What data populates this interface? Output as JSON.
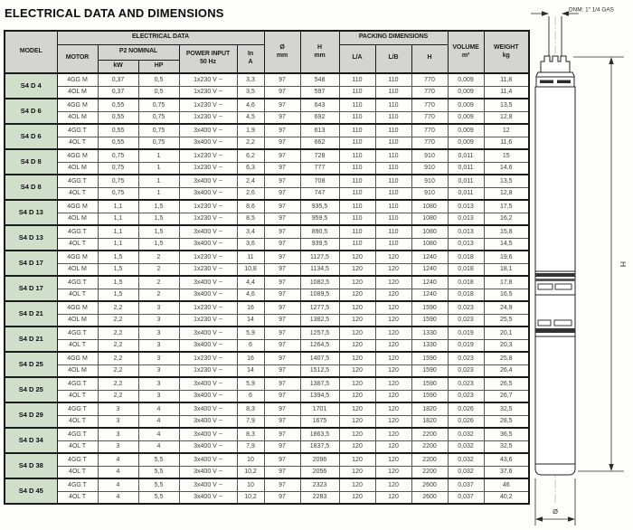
{
  "title": "ELECTRICAL DATA AND DIMENSIONS",
  "colors": {
    "header_bg": "#d4d4d2",
    "model_cell_bg": "#cfdfc9",
    "border": "#1a1a1a"
  },
  "table": {
    "headers": {
      "model": "MODEL",
      "electrical_data": "ELECTRICAL DATA",
      "motor": "MOTOR",
      "p2_nominal": "P2 NOMINAL",
      "kw": "kW",
      "hp": "HP",
      "power_input": "POWER INPUT\n50 Hz",
      "in_a": "In\nA",
      "diameter": "Ø\nmm",
      "h_mm": "H\nmm",
      "packing_dimensions": "PACKING DIMENSIONS",
      "l_a": "L/A",
      "l_b": "L/B",
      "h_pack": "H",
      "volume": "VOLUME\nm³",
      "weight": "WEIGHT\nkg"
    },
    "column_keys": [
      "motor",
      "kw",
      "hp",
      "power-input",
      "in-a",
      "diameter",
      "h-mm",
      "l-a",
      "l-b",
      "h-pack",
      "volume",
      "weight"
    ],
    "groups": [
      {
        "model": "S4 D 4",
        "rows": [
          [
            "4GG M",
            "0,37",
            "0,5",
            "1x230 V ~",
            "3,3",
            "97",
            "548",
            "110",
            "110",
            "770",
            "0,009",
            "11,8"
          ],
          [
            "4OL M",
            "0,37",
            "0,5",
            "1x230 V ~",
            "3,5",
            "97",
            "597",
            "110",
            "110",
            "770",
            "0,009",
            "11,4"
          ]
        ]
      },
      {
        "model": "S4 D 6",
        "rows": [
          [
            "4GG M",
            "0,55",
            "0,75",
            "1x230 V ~",
            "4,6",
            "97",
            "643",
            "110",
            "110",
            "770",
            "0,009",
            "13,5"
          ],
          [
            "4OL M",
            "0,55",
            "0,75",
            "1x230 V ~",
            "4,5",
            "97",
            "692",
            "110",
            "110",
            "770",
            "0,009",
            "12,8"
          ]
        ]
      },
      {
        "model": "S4 D 6",
        "rows": [
          [
            "4GG T",
            "0,55",
            "0,75",
            "3x400 V ~",
            "1,9",
            "97",
            "613",
            "110",
            "110",
            "770",
            "0,009",
            "12"
          ],
          [
            "4OL T",
            "0,55",
            "0,75",
            "3x400 V ~",
            "2,2",
            "97",
            "662",
            "110",
            "110",
            "770",
            "0,009",
            "11,6"
          ]
        ]
      },
      {
        "model": "S4 D 8",
        "rows": [
          [
            "4GG M",
            "0,75",
            "1",
            "1x230 V ~",
            "6,2",
            "97",
            "728",
            "110",
            "110",
            "910",
            "0,011",
            "15"
          ],
          [
            "4OL M",
            "0,75",
            "1",
            "1x230 V ~",
            "6,3",
            "97",
            "777",
            "110",
            "110",
            "910",
            "0,011",
            "14,6"
          ]
        ]
      },
      {
        "model": "S4 D 8",
        "rows": [
          [
            "4GG T",
            "0,75",
            "1",
            "3x400 V ~",
            "2,4",
            "97",
            "708",
            "110",
            "110",
            "910",
            "0,011",
            "13,5"
          ],
          [
            "4OL T",
            "0,75",
            "1",
            "3x400 V ~",
            "2,6",
            "97",
            "747",
            "110",
            "110",
            "910",
            "0,011",
            "12,8"
          ]
        ]
      },
      {
        "model": "S4 D 13",
        "rows": [
          [
            "4GG M",
            "1,1",
            "1,5",
            "1x230 V ~",
            "8,6",
            "97",
            "935,5",
            "110",
            "110",
            "1080",
            "0,013",
            "17,5"
          ],
          [
            "4OL M",
            "1,1",
            "1,5",
            "1x230 V ~",
            "8,5",
            "97",
            "959,5",
            "110",
            "110",
            "1080",
            "0,013",
            "16,2"
          ]
        ]
      },
      {
        "model": "S4 D 13",
        "rows": [
          [
            "4GG T",
            "1,1",
            "1,5",
            "3x400 V ~",
            "3,4",
            "97",
            "890,5",
            "110",
            "110",
            "1080",
            "0,013",
            "15,8"
          ],
          [
            "4OL T",
            "1,1",
            "1,5",
            "3x400 V ~",
            "3,6",
            "97",
            "939,5",
            "110",
            "110",
            "1080",
            "0,013",
            "14,5"
          ]
        ]
      },
      {
        "model": "S4 D 17",
        "rows": [
          [
            "4GG M",
            "1,5",
            "2",
            "1x230 V ~",
            "11",
            "97",
            "1127,5",
            "120",
            "120",
            "1240",
            "0,018",
            "19,6"
          ],
          [
            "4OL M",
            "1,5",
            "2",
            "1x230 V ~",
            "10,8",
            "97",
            "1134,5",
            "120",
            "120",
            "1240",
            "0,018",
            "18,1"
          ]
        ]
      },
      {
        "model": "S4 D 17",
        "rows": [
          [
            "4GG T",
            "1,5",
            "2",
            "3x400 V ~",
            "4,4",
            "97",
            "1082,5",
            "120",
            "120",
            "1240",
            "0,018",
            "17,8"
          ],
          [
            "4OL T",
            "1,5",
            "2",
            "3x400 V ~",
            "4,6",
            "97",
            "1089,5",
            "120",
            "120",
            "1240",
            "0,018",
            "16,5"
          ]
        ]
      },
      {
        "model": "S4 D 21",
        "rows": [
          [
            "4GG M",
            "2,2",
            "3",
            "1x230 V ~",
            "16",
            "97",
            "1277,5",
            "120",
            "120",
            "1590",
            "0,023",
            "24,9"
          ],
          [
            "4OL M",
            "2,2",
            "3",
            "1x230 V ~",
            "14",
            "97",
            "1382,5",
            "120",
            "120",
            "1590",
            "0,023",
            "25,5"
          ]
        ]
      },
      {
        "model": "S4 D 21",
        "rows": [
          [
            "4GG T",
            "2,2",
            "3",
            "3x400 V ~",
            "5,9",
            "97",
            "1257,5",
            "120",
            "120",
            "1330",
            "0,019",
            "20,1"
          ],
          [
            "4OL T",
            "2,2",
            "3",
            "3x400 V ~",
            "6",
            "97",
            "1264,5",
            "120",
            "120",
            "1330",
            "0,019",
            "20,3"
          ]
        ]
      },
      {
        "model": "S4 D 25",
        "rows": [
          [
            "4GG M",
            "2,2",
            "3",
            "1x230 V ~",
            "16",
            "97",
            "1407,5",
            "120",
            "120",
            "1590",
            "0,023",
            "25,8"
          ],
          [
            "4OL M",
            "2,2",
            "3",
            "1x230 V ~",
            "14",
            "97",
            "1512,5",
            "120",
            "120",
            "1590",
            "0,023",
            "26,4"
          ]
        ]
      },
      {
        "model": "S4 D 25",
        "rows": [
          [
            "4GG T",
            "2,2",
            "3",
            "3x400 V ~",
            "5,9",
            "97",
            "1387,5",
            "120",
            "120",
            "1590",
            "0,023",
            "26,5"
          ],
          [
            "4OL T",
            "2,2",
            "3",
            "3x400 V ~",
            "6",
            "97",
            "1394,5",
            "120",
            "120",
            "1590",
            "0,023",
            "26,7"
          ]
        ]
      },
      {
        "model": "S4 D 29",
        "rows": [
          [
            "4GG T",
            "3",
            "4",
            "3x400 V ~",
            "8,3",
            "97",
            "1701",
            "120",
            "120",
            "1820",
            "0,026",
            "32,5"
          ],
          [
            "4OL T",
            "3",
            "4",
            "3x400 V ~",
            "7,9",
            "97",
            "1675",
            "120",
            "120",
            "1820",
            "0,026",
            "28,5"
          ]
        ]
      },
      {
        "model": "S4 D 34",
        "rows": [
          [
            "4GG T",
            "3",
            "4",
            "3x400 V ~",
            "8,3",
            "97",
            "1863,5",
            "120",
            "120",
            "2200",
            "0,032",
            "36,5"
          ],
          [
            "4OL T",
            "3",
            "4",
            "3x400 V ~",
            "7,9",
            "97",
            "1837,5",
            "120",
            "120",
            "2200",
            "0,032",
            "32,5"
          ]
        ]
      },
      {
        "model": "S4 D 38",
        "rows": [
          [
            "4GG T",
            "4",
            "5,5",
            "3x400 V ~",
            "10",
            "97",
            "2096",
            "120",
            "120",
            "2200",
            "0,032",
            "43,6"
          ],
          [
            "4OL T",
            "4",
            "5,5",
            "3x400 V ~",
            "10,2",
            "97",
            "2056",
            "120",
            "120",
            "2200",
            "0,032",
            "37,6"
          ]
        ]
      },
      {
        "model": "S4 D 45",
        "rows": [
          [
            "4GG T",
            "4",
            "5,5",
            "3x400 V ~",
            "10",
            "97",
            "2323",
            "120",
            "120",
            "2600",
            "0,037",
            "46"
          ],
          [
            "4OL T",
            "4",
            "5,5",
            "3x400 V ~",
            "10,2",
            "97",
            "2283",
            "120",
            "120",
            "2600",
            "0,037",
            "40,2"
          ]
        ]
      }
    ]
  },
  "diagram": {
    "dnm_label": "DNM: 1\" 1/4 GAS",
    "height_label": "H",
    "diameter_label": "Ø"
  }
}
